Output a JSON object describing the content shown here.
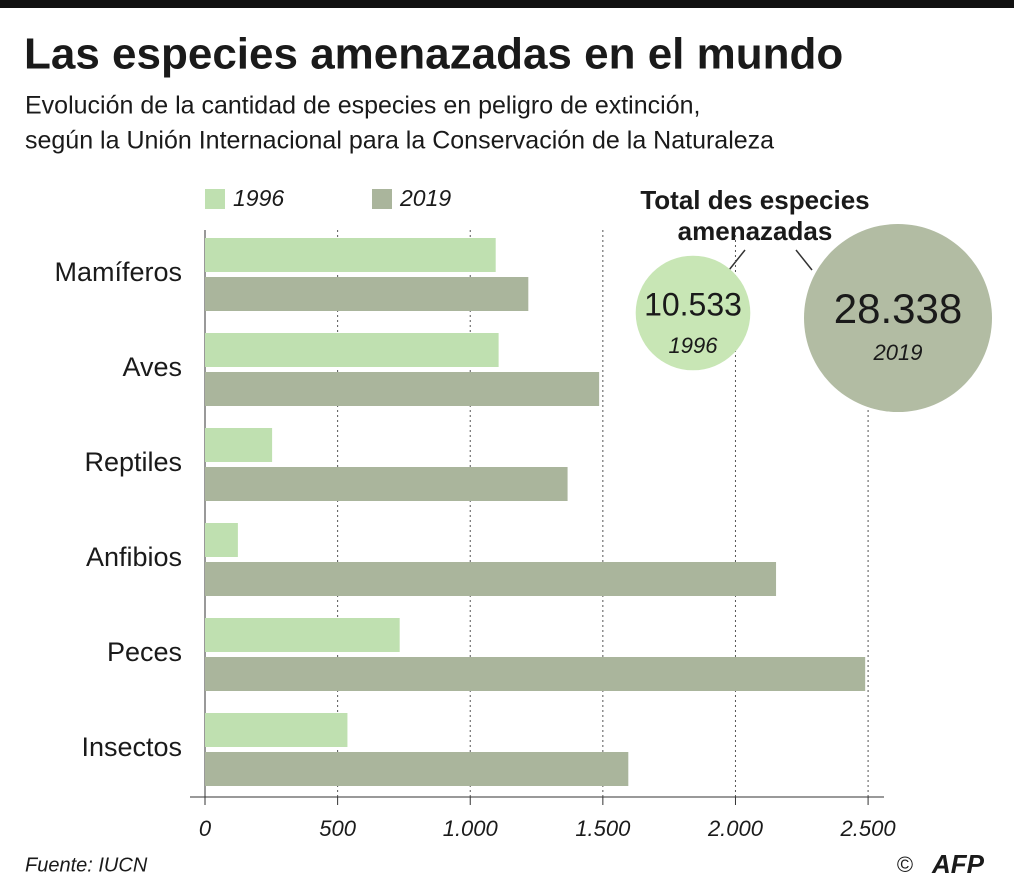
{
  "chart_data": {
    "type": "bar",
    "orientation": "horizontal",
    "title": "Las especies amenazadas en el mundo",
    "subtitle_lines": [
      "Evolución de la cantidad de especies en peligro de extinción,",
      "según la Unión Internacional para la Conservación de la Naturaleza"
    ],
    "categories": [
      "Mamíferos",
      "Aves",
      "Reptiles",
      "Anfibios",
      "Peces",
      "Insectos"
    ],
    "series": [
      {
        "name": "1996",
        "color": "#bfe0b0",
        "values": [
          1096,
          1107,
          253,
          124,
          734,
          537
        ]
      },
      {
        "name": "2019",
        "color": "#aab59c",
        "values": [
          1219,
          1486,
          1367,
          2153,
          2489,
          1596
        ]
      }
    ],
    "xlim": [
      0,
      2560
    ],
    "xticks": [
      0,
      500,
      {
        "value": 1000,
        "label": "1.000"
      },
      {
        "value": 1500,
        "label": "1.500"
      },
      {
        "value": 2000,
        "label": "2.000"
      },
      {
        "value": 2500,
        "label": "2.500"
      }
    ],
    "grid": true,
    "totals": {
      "title_lines": [
        "Total des especies",
        "amenazadas"
      ],
      "items": [
        {
          "value": 10533,
          "label": "10.533",
          "year": "1996",
          "color": "#c8e6b5"
        },
        {
          "value": 28338,
          "label": "28.338",
          "year": "2019",
          "color": "#b2bca3"
        }
      ]
    },
    "source": "Fuente: IUCN",
    "credit": "AFP"
  }
}
